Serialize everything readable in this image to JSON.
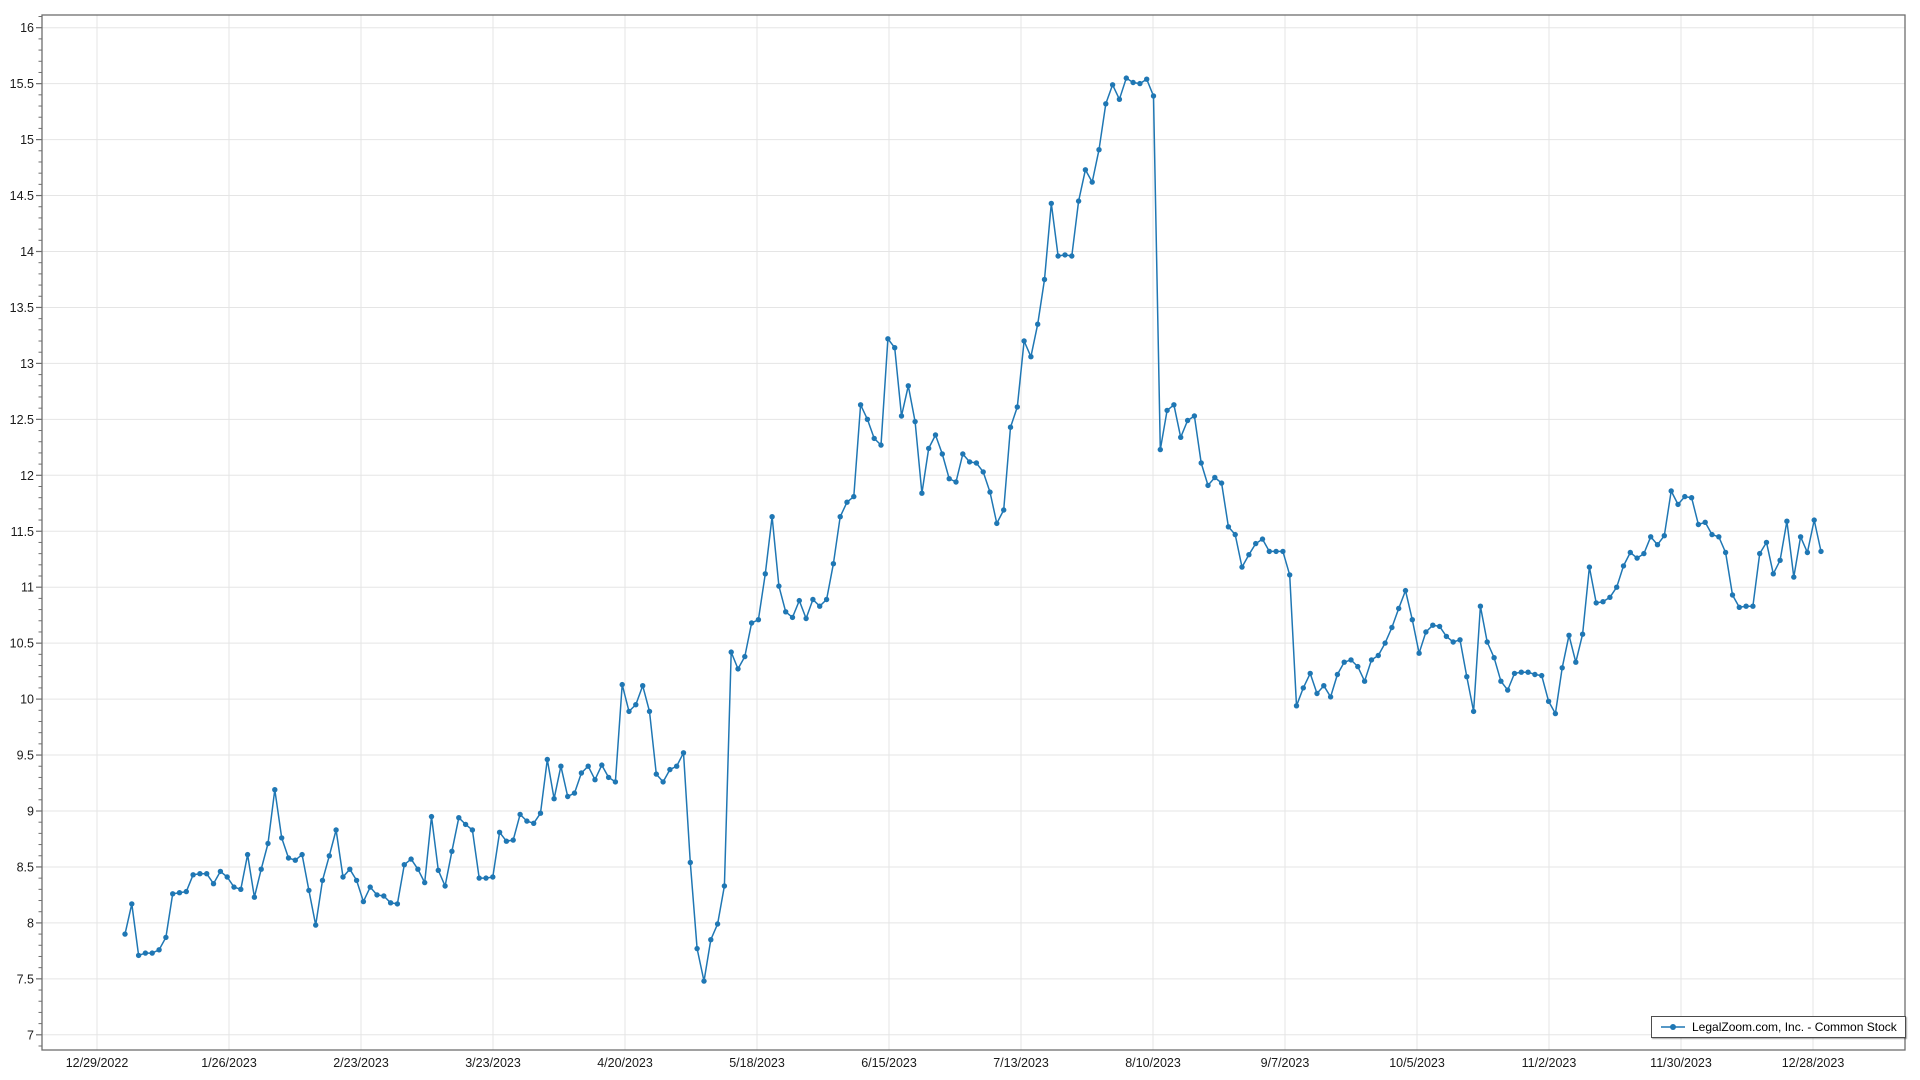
{
  "page": {
    "background": "#ffffff"
  },
  "legend": {
    "position": "bottom-right"
  },
  "chart_data": {
    "type": "line",
    "title": "",
    "xlabel": "",
    "ylabel": "",
    "grid": true,
    "legend_position": "bottom-right",
    "y_axis": {
      "min": 7,
      "max": 16,
      "step": 0.5,
      "minor_step": 0.1
    },
    "ylim": [
      6.86,
      16.11
    ],
    "y_tick_labels": [
      "7",
      "7.5",
      "8",
      "8.5",
      "9",
      "9.5",
      "10",
      "10.5",
      "11",
      "11.5",
      "12",
      "12.5",
      "13",
      "13.5",
      "14",
      "14.5",
      "15",
      "15.5",
      "16"
    ],
    "x_tick_labels": [
      "12/29/2022",
      "1/26/2023",
      "2/23/2023",
      "3/23/2023",
      "4/20/2023",
      "5/18/2023",
      "6/15/2023",
      "7/13/2023",
      "8/10/2023",
      "9/7/2023",
      "10/5/2023",
      "11/2/2023",
      "11/30/2023",
      "12/28/2023"
    ],
    "colors": {
      "line": "#1f77b4",
      "grid": "#e5e5e5",
      "axis": "#6e6e6e",
      "text": "#1a1a1a",
      "legend_border": "#4d4d4d"
    },
    "series": [
      {
        "name": "LegalZoom.com, Inc. - Common Stock",
        "color": "#1f77b4",
        "marker": "circle",
        "values": [
          7.9,
          8.17,
          7.71,
          7.73,
          7.73,
          7.76,
          7.87,
          8.26,
          8.27,
          8.28,
          8.43,
          8.44,
          8.44,
          8.35,
          8.46,
          8.41,
          8.32,
          8.3,
          8.61,
          8.23,
          8.48,
          8.71,
          9.19,
          8.76,
          8.58,
          8.56,
          8.61,
          8.29,
          7.98,
          8.38,
          8.6,
          8.83,
          8.41,
          8.48,
          8.38,
          8.19,
          8.32,
          8.25,
          8.24,
          8.18,
          8.17,
          8.52,
          8.57,
          8.48,
          8.36,
          8.95,
          8.47,
          8.33,
          8.64,
          8.94,
          8.88,
          8.83,
          8.4,
          8.4,
          8.41,
          8.81,
          8.73,
          8.74,
          8.97,
          8.91,
          8.89,
          8.98,
          9.46,
          9.11,
          9.4,
          9.13,
          9.16,
          9.34,
          9.4,
          9.28,
          9.41,
          9.3,
          9.26,
          10.13,
          9.89,
          9.95,
          10.12,
          9.89,
          9.33,
          9.26,
          9.37,
          9.4,
          9.52,
          8.54,
          7.77,
          7.48,
          7.85,
          7.99,
          8.33,
          10.42,
          10.27,
          10.38,
          10.68,
          10.71,
          11.12,
          11.63,
          11.01,
          10.78,
          10.73,
          10.88,
          10.72,
          10.89,
          10.83,
          10.89,
          11.21,
          11.63,
          11.76,
          11.81,
          12.63,
          12.5,
          12.33,
          12.27,
          13.22,
          13.14,
          12.53,
          12.8,
          12.48,
          11.84,
          12.24,
          12.36,
          12.19,
          11.97,
          11.94,
          12.19,
          12.12,
          12.11,
          12.03,
          11.85,
          11.57,
          11.69,
          12.43,
          12.61,
          13.2,
          13.06,
          13.35,
          13.75,
          14.43,
          13.96,
          13.97,
          13.96,
          14.45,
          14.73,
          14.62,
          14.91,
          15.32,
          15.49,
          15.36,
          15.55,
          15.51,
          15.5,
          15.54,
          15.39,
          12.23,
          12.58,
          12.63,
          12.34,
          12.49,
          12.53,
          12.11,
          11.91,
          11.98,
          11.93,
          11.54,
          11.47,
          11.18,
          11.29,
          11.39,
          11.43,
          11.32,
          11.32,
          11.32,
          11.11,
          9.94,
          10.1,
          10.23,
          10.05,
          10.12,
          10.02,
          10.22,
          10.33,
          10.35,
          10.29,
          10.16,
          10.35,
          10.39,
          10.5,
          10.64,
          10.81,
          10.97,
          10.71,
          10.41,
          10.6,
          10.66,
          10.65,
          10.56,
          10.51,
          10.53,
          10.2,
          9.89,
          10.83,
          10.51,
          10.37,
          10.16,
          10.08,
          10.23,
          10.24,
          10.24,
          10.22,
          10.21,
          9.98,
          9.87,
          10.28,
          10.57,
          10.33,
          10.58,
          11.18,
          10.86,
          10.87,
          10.91,
          11.0,
          11.19,
          11.31,
          11.26,
          11.3,
          11.45,
          11.38,
          11.46,
          11.86,
          11.74,
          11.81,
          11.8,
          11.56,
          11.58,
          11.47,
          11.45,
          11.31,
          10.93,
          10.82,
          10.83,
          10.83,
          11.3,
          11.4,
          11.12,
          11.24,
          11.59,
          11.09,
          11.45,
          11.31,
          11.6,
          11.32
        ]
      }
    ]
  }
}
